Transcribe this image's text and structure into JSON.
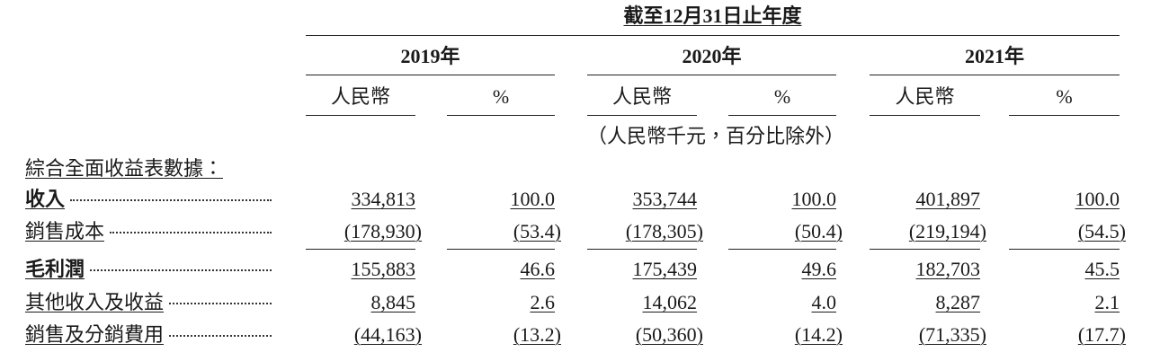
{
  "header": {
    "period": "截至12月31日止年度",
    "years": [
      "2019年",
      "2020年",
      "2021年"
    ],
    "columns": [
      "人民幣",
      "%",
      "人民幣",
      "%",
      "人民幣",
      "%"
    ],
    "unit_note": "（人民幣千元，百分比除外）"
  },
  "table": {
    "section": "綜合全面收益表數據：",
    "rows": [
      {
        "label": "收入",
        "bold": true,
        "values": [
          "334,813",
          "100.0",
          "353,744",
          "100.0",
          "401,897",
          "100.0"
        ]
      },
      {
        "label": "銷售成本",
        "bold": false,
        "values": [
          "(178,930)",
          "(53.4)",
          "(178,305)",
          "(50.4)",
          "(219,194)",
          "(54.5)"
        ]
      },
      {
        "label": "毛利潤",
        "bold": true,
        "values": [
          "155,883",
          "46.6",
          "175,439",
          "49.6",
          "182,703",
          "45.5"
        ]
      },
      {
        "label": "其他收入及收益",
        "bold": false,
        "values": [
          "8,845",
          "2.6",
          "14,062",
          "4.0",
          "8,287",
          "2.1"
        ]
      },
      {
        "label": "銷售及分銷費用",
        "bold": false,
        "values": [
          "(44,163)",
          "(13.2)",
          "(50,360)",
          "(14.2)",
          "(71,335)",
          "(17.7)"
        ]
      }
    ]
  }
}
